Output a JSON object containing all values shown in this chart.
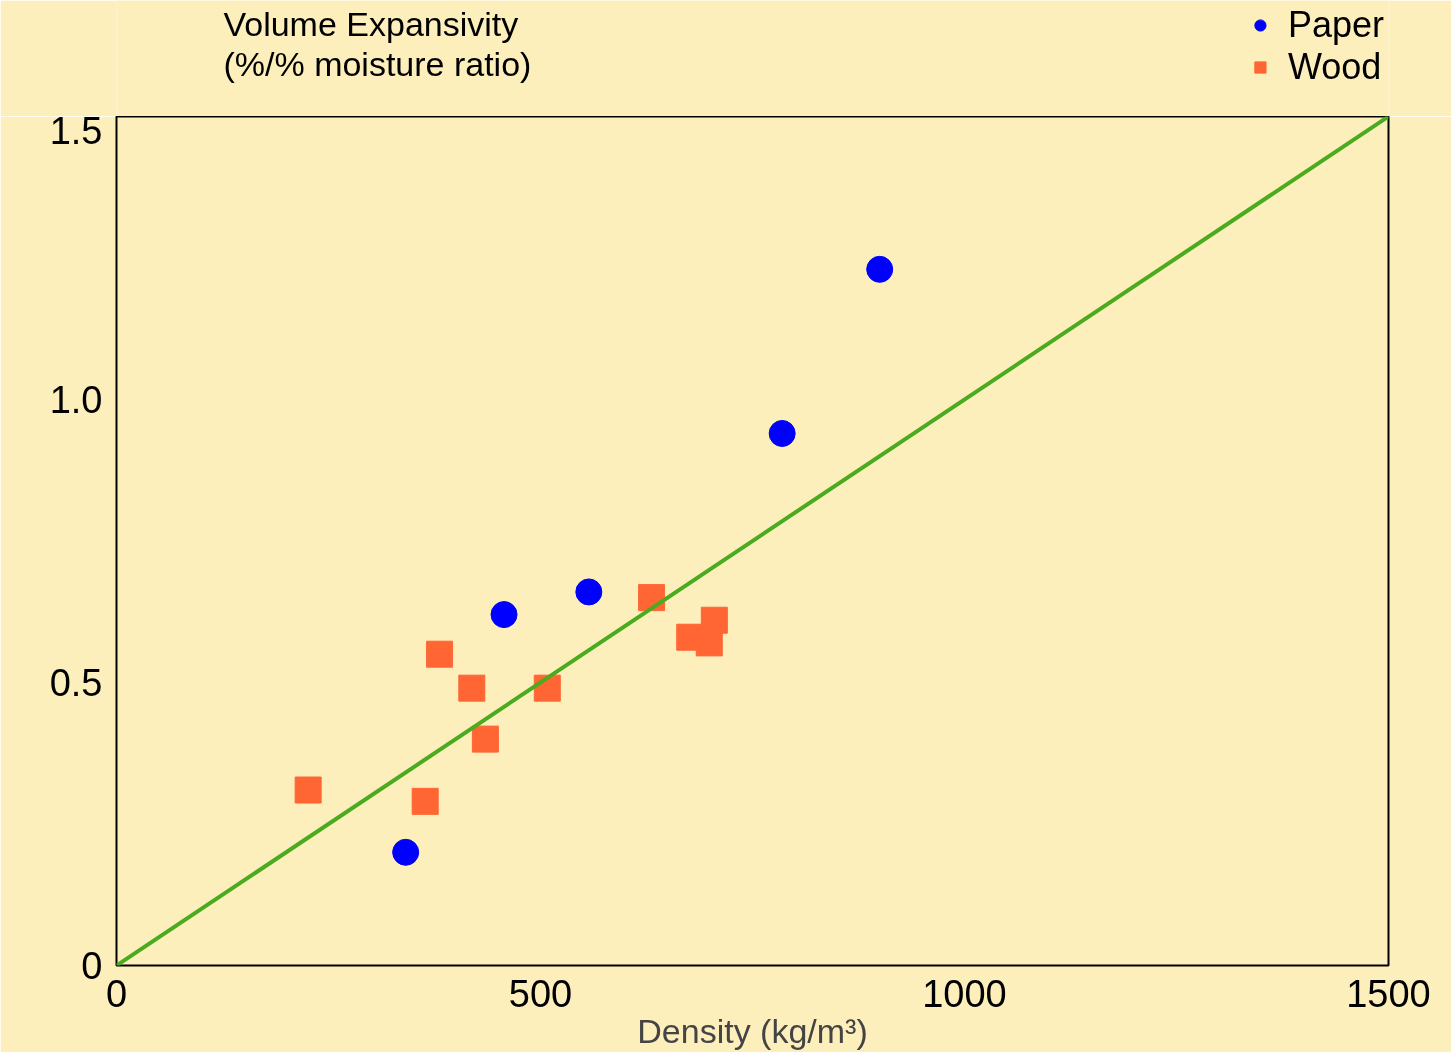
{
  "chart_data": {
    "type": "scatter",
    "ylabel": "Volume Expansivity\n(%/% moisture ratio)",
    "xlabel": "Density (kg/m³)",
    "xlim": [
      0,
      1500
    ],
    "xticks": [
      0,
      500,
      1000,
      1500
    ],
    "ylim": [
      0,
      1.5
    ],
    "yticks": [
      0,
      {
        "value": 0.5,
        "label": "0.5"
      },
      {
        "value": 1.0,
        "label": "1.0"
      },
      1.5
    ],
    "grid": false,
    "legend": "top right",
    "series": [
      {
        "name": "Paper",
        "color": "#0000ff",
        "marker": "circle",
        "x": [
          341,
          457,
          557,
          785,
          900
        ],
        "values": [
          0.2,
          0.62,
          0.66,
          0.94,
          1.23
        ]
      },
      {
        "name": "Wood",
        "color": "#ff6633",
        "marker": "square",
        "x": [
          226,
          364,
          381,
          419,
          435,
          508,
          631,
          676,
          699,
          705
        ],
        "values": [
          0.31,
          0.29,
          0.55,
          0.49,
          0.4,
          0.49,
          0.65,
          0.58,
          0.57,
          0.61
        ]
      },
      {
        "type": "line",
        "color": "#4aab1f",
        "x": [
          0,
          1500
        ],
        "values": [
          0,
          1.5
        ]
      }
    ]
  }
}
